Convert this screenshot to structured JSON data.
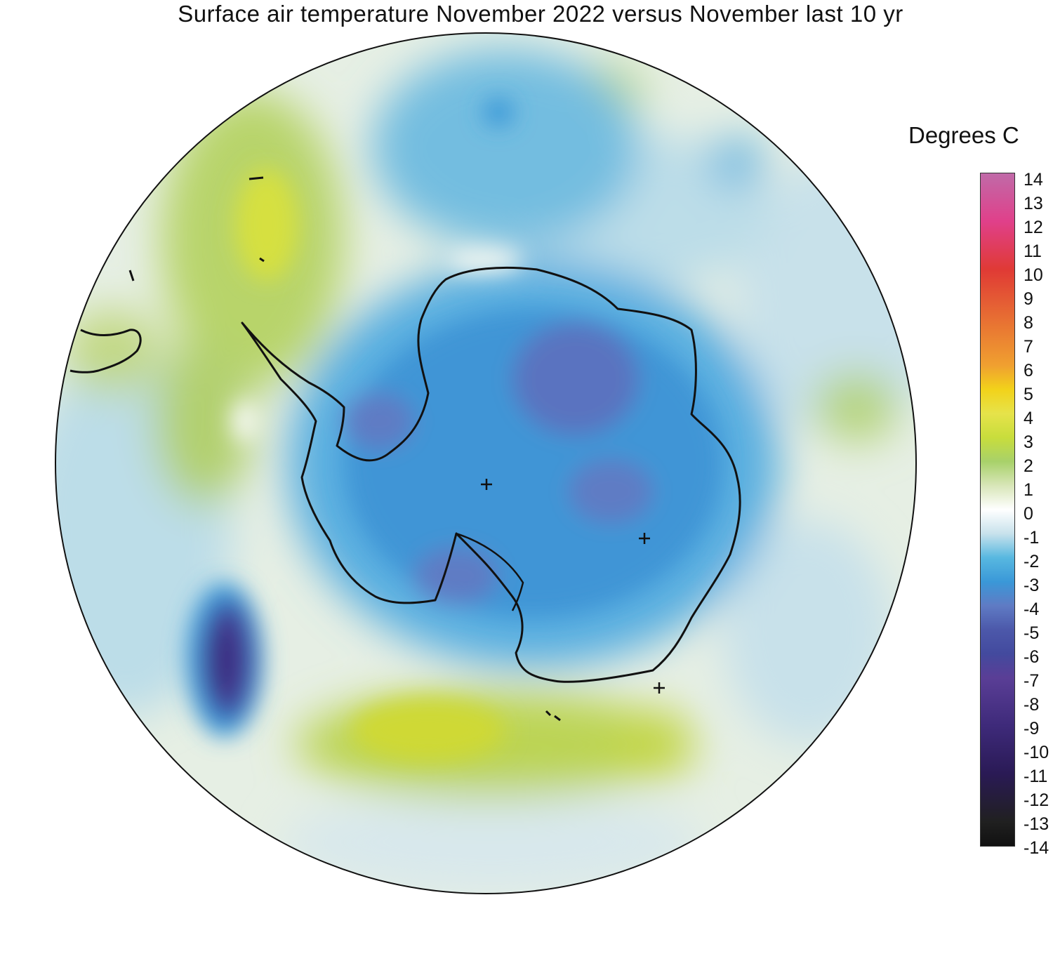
{
  "title": "Surface air temperature November 2022 versus November last 10 yr",
  "legend": {
    "title": "Degrees C",
    "ticks": [
      "14",
      "13",
      "12",
      "11",
      "10",
      "9",
      "8",
      "7",
      "6",
      "5",
      "4",
      "3",
      "2",
      "1",
      "0",
      "-1",
      "-2",
      "-3",
      "-4",
      "-5",
      "-6",
      "-7",
      "-8",
      "-9",
      "-10",
      "-11",
      "-12",
      "-13",
      "-14"
    ],
    "range": [
      -14,
      14
    ],
    "colors": [
      {
        "value": 14,
        "color": "#c06aa8"
      },
      {
        "value": 12,
        "color": "#e0408a"
      },
      {
        "value": 10,
        "color": "#e03a35"
      },
      {
        "value": 8,
        "color": "#e76d33"
      },
      {
        "value": 6,
        "color": "#f0a030"
      },
      {
        "value": 5,
        "color": "#f2d21a"
      },
      {
        "value": 4,
        "color": "#e6e34a"
      },
      {
        "value": 3,
        "color": "#c8dd3c"
      },
      {
        "value": 2,
        "color": "#a8d16a"
      },
      {
        "value": 1,
        "color": "#d8e6b8"
      },
      {
        "value": 0,
        "color": "#ffffff"
      },
      {
        "value": -1,
        "color": "#c8e2ec"
      },
      {
        "value": -2,
        "color": "#58b8e0"
      },
      {
        "value": -3,
        "color": "#3a98d8"
      },
      {
        "value": -4,
        "color": "#5f7bc4"
      },
      {
        "value": -5,
        "color": "#4c58aa"
      },
      {
        "value": -6,
        "color": "#434a9e"
      },
      {
        "value": -7,
        "color": "#5a3e96"
      },
      {
        "value": -9,
        "color": "#3e2a7a"
      },
      {
        "value": -11,
        "color": "#2a1a55"
      },
      {
        "value": -13,
        "color": "#202020"
      },
      {
        "value": -14,
        "color": "#111111"
      }
    ]
  },
  "map": {
    "projection": "south-polar-stereographic",
    "markers": [
      {
        "name": "marker-south-pole",
        "symbol": "+"
      },
      {
        "name": "marker-east-antarctica",
        "symbol": "+"
      },
      {
        "name": "marker-coastal-station",
        "symbol": "+"
      }
    ]
  }
}
